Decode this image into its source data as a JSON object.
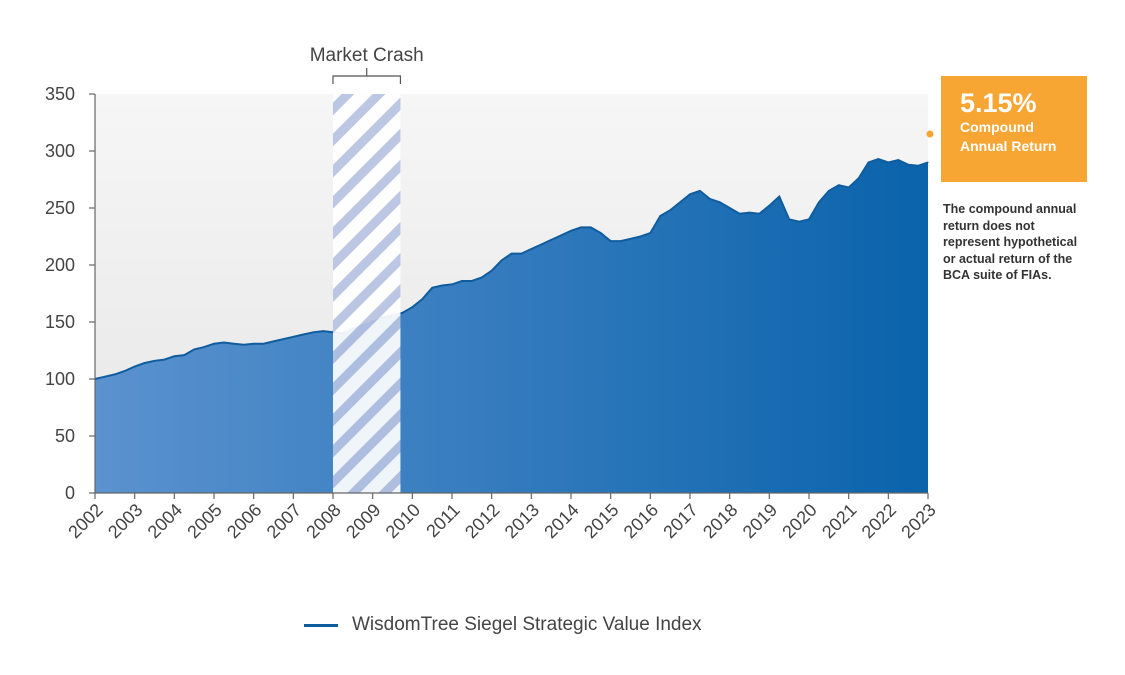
{
  "chart_data": {
    "type": "area",
    "title": "",
    "xlabel": "",
    "ylabel": "",
    "ylim": [
      0,
      350
    ],
    "y_ticks": [
      0,
      50,
      100,
      150,
      200,
      250,
      300,
      350
    ],
    "x_tick_labels": [
      "2002",
      "2003",
      "2004",
      "2005",
      "2006",
      "2007",
      "2008",
      "2009",
      "2010",
      "2011",
      "2012",
      "2013",
      "2014",
      "2015",
      "2016",
      "2017",
      "2018",
      "2019",
      "2020",
      "2021",
      "2022",
      "2023"
    ],
    "grid": false,
    "legend_position": "bottom-center",
    "series": [
      {
        "name": "WisdomTree Siegel Strategic Value Index",
        "x": [
          2002.0,
          2002.25,
          2002.5,
          2002.75,
          2003.0,
          2003.25,
          2003.5,
          2003.75,
          2004.0,
          2004.25,
          2004.5,
          2004.75,
          2005.0,
          2005.25,
          2005.5,
          2005.75,
          2006.0,
          2006.25,
          2006.5,
          2006.75,
          2007.0,
          2007.25,
          2007.5,
          2007.75,
          2008.0,
          2008.25,
          2008.5,
          2008.75,
          2009.0,
          2009.25,
          2009.5,
          2009.75,
          2010.0,
          2010.25,
          2010.5,
          2010.75,
          2011.0,
          2011.25,
          2011.5,
          2011.75,
          2012.0,
          2012.25,
          2012.5,
          2012.75,
          2013.0,
          2013.25,
          2013.5,
          2013.75,
          2014.0,
          2014.25,
          2014.5,
          2014.75,
          2015.0,
          2015.25,
          2015.5,
          2015.75,
          2016.0,
          2016.25,
          2016.5,
          2016.75,
          2017.0,
          2017.25,
          2017.5,
          2017.75,
          2018.0,
          2018.25,
          2018.5,
          2018.75,
          2019.0,
          2019.25,
          2019.5,
          2019.75,
          2020.0,
          2020.25,
          2020.5,
          2020.75,
          2021.0,
          2021.25,
          2021.5,
          2021.75,
          2022.0,
          2022.25,
          2022.5,
          2022.75,
          2023.0
        ],
        "values": [
          100,
          102,
          104,
          107,
          111,
          114,
          116,
          117,
          120,
          121,
          126,
          128,
          131,
          132,
          131,
          130,
          131,
          131,
          133,
          135,
          137,
          139,
          141,
          142,
          141,
          140,
          144,
          147,
          150,
          154,
          156,
          158,
          163,
          170,
          180,
          182,
          183,
          186,
          186,
          189,
          195,
          204,
          210,
          210,
          214,
          218,
          222,
          226,
          230,
          233,
          233,
          228,
          221,
          221,
          223,
          225,
          228,
          243,
          248,
          255,
          262,
          265,
          258,
          255,
          250,
          245,
          246,
          245,
          252,
          260,
          240,
          238,
          240,
          255,
          265,
          270,
          268,
          276,
          290,
          293,
          290,
          292,
          288,
          287,
          290
        ]
      }
    ],
    "annotations": {
      "shaded_region": {
        "label": "Market Crash",
        "x_start": 2008.0,
        "x_end": 2009.7
      },
      "callout": {
        "value": "5.15%",
        "label_line1": "Compound",
        "label_line2": "Annual Return",
        "color": "#f7a533"
      },
      "note": "The compound annual return does not represent hypothetical or actual return of the BCA suite of FIAs."
    },
    "colors": {
      "area_start": "#5b92cf",
      "area_end": "#0a63ab",
      "line": "#0f5d9e",
      "hatch": "#b7c3e2",
      "plot_bg": "#eeeeee"
    }
  }
}
